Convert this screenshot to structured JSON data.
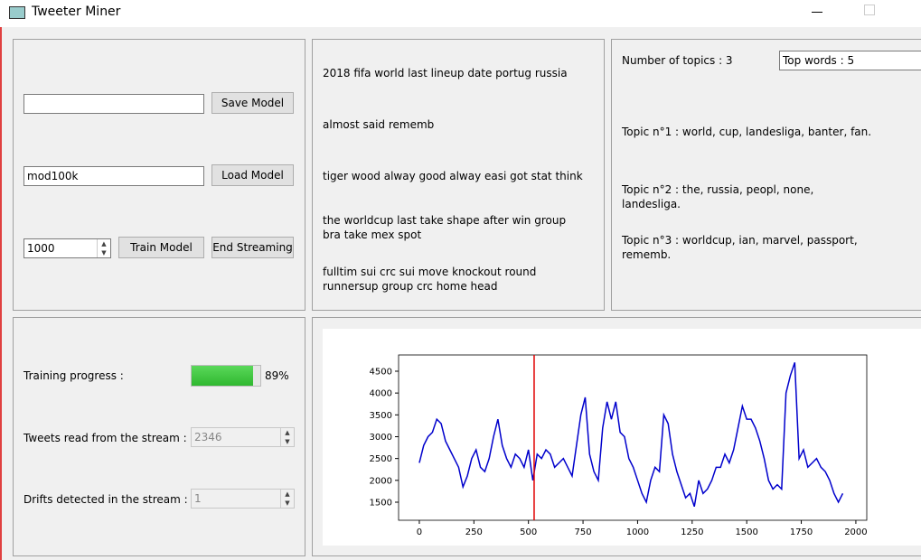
{
  "window": {
    "title": "Tweeter Miner"
  },
  "model_panel": {
    "save_input": "",
    "save_button": "Save Model",
    "load_input": "mod100k",
    "load_button": "Load Model",
    "count_input": "1000",
    "train_button": "Train Model",
    "end_button": "End Streaming"
  },
  "tweets_panel": {
    "tweets": [
      "2018 fifa world last lineup date portug russia",
      "almost said rememb",
      "tiger wood alway good alway easi got stat think",
      "the worldcup last take shape after win group bra take mex spot",
      "fulltim sui crc sui move knockout round runnersup group crc home head"
    ]
  },
  "topics_panel": {
    "num_topics_label": "Number of topics : 3",
    "top_words_input": "Top words : 5",
    "topics": [
      "Topic n°1 : world, cup, landesliga, banter, fan.",
      "Topic n°2 : the, russia, peopl, none, landesliga.",
      "Topic n°3 : worldcup, ian, marvel, passport, rememb."
    ]
  },
  "status_panel": {
    "progress_label": "Training progress :",
    "progress": {
      "value": 89,
      "label": "89%"
    },
    "tweets_read_label": "Tweets read from the stream :",
    "tweets_read": "2346",
    "drifts_label": "Drifts detected in the stream :",
    "drifts": "1"
  },
  "chart_data": {
    "type": "line",
    "x": [
      0,
      20,
      40,
      60,
      80,
      100,
      120,
      140,
      160,
      180,
      200,
      220,
      240,
      260,
      280,
      300,
      320,
      340,
      360,
      380,
      400,
      420,
      440,
      460,
      480,
      500,
      520,
      540,
      560,
      580,
      600,
      620,
      640,
      660,
      680,
      700,
      720,
      740,
      760,
      780,
      800,
      820,
      840,
      860,
      880,
      900,
      920,
      940,
      960,
      980,
      1000,
      1020,
      1040,
      1060,
      1080,
      1100,
      1120,
      1140,
      1160,
      1180,
      1200,
      1220,
      1240,
      1260,
      1280,
      1300,
      1320,
      1340,
      1360,
      1380,
      1400,
      1420,
      1440,
      1460,
      1480,
      1500,
      1520,
      1540,
      1560,
      1580,
      1600,
      1620,
      1640,
      1660,
      1680,
      1700,
      1720,
      1740,
      1760,
      1780,
      1800,
      1820,
      1840,
      1860,
      1880,
      1900,
      1920,
      1940
    ],
    "series": [
      {
        "color": "#0000cc",
        "values": [
          2400,
          2800,
          3000,
          3100,
          3400,
          3300,
          2900,
          2700,
          2500,
          2300,
          1850,
          2100,
          2500,
          2700,
          2300,
          2200,
          2500,
          3000,
          3400,
          2800,
          2500,
          2300,
          2600,
          2500,
          2300,
          2700,
          2000,
          2600,
          2500,
          2700,
          2600,
          2300,
          2400,
          2500,
          2300,
          2100,
          2800,
          3500,
          3900,
          2600,
          2200,
          2000,
          3200,
          3800,
          3400,
          3800,
          3100,
          3000,
          2500,
          2300,
          2000,
          1700,
          1500,
          2000,
          2300,
          2200,
          3500,
          3300,
          2600,
          2200,
          1900,
          1600,
          1700,
          1400,
          2000,
          1700,
          1800,
          2000,
          2300,
          2300,
          2600,
          2400,
          2700,
          3200,
          3700,
          3400,
          3400,
          3200,
          2900,
          2500,
          2000,
          1800,
          1900,
          1800,
          4000,
          4400,
          4700,
          2500,
          2700,
          2300,
          2400,
          2500,
          2300,
          2200,
          2000,
          1700,
          1500,
          1700
        ]
      }
    ],
    "vline": 526,
    "vline_color": "#e00000",
    "xlim": [
      -95,
      2050
    ],
    "ylim": [
      1086,
      4872
    ],
    "xticks": [
      0,
      250,
      500,
      750,
      1000,
      1250,
      1500,
      1750,
      2000
    ],
    "yticks": [
      1500,
      2000,
      2500,
      3000,
      3500,
      4000,
      4500
    ]
  }
}
